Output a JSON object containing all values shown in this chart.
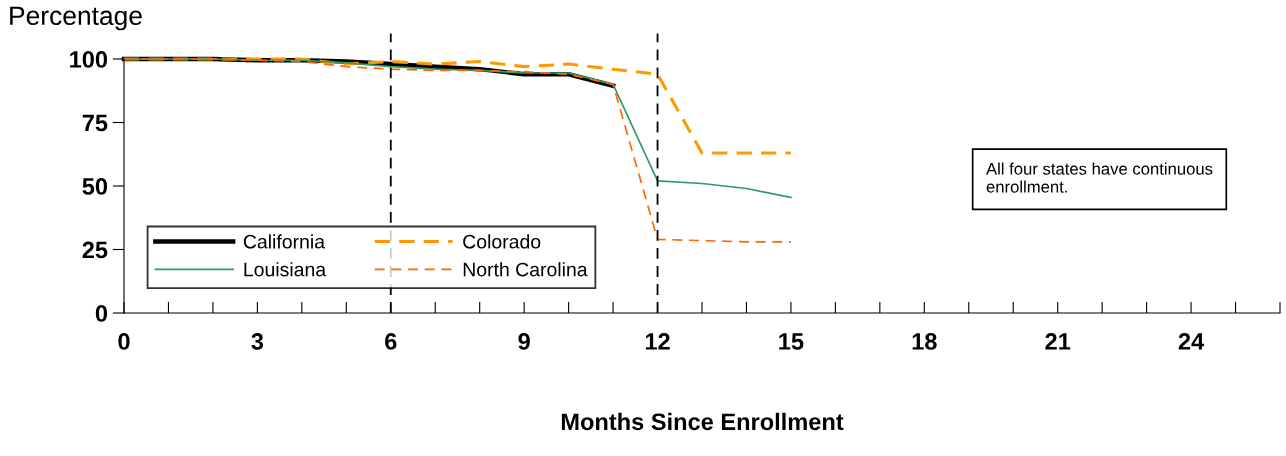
{
  "chart_data": {
    "type": "line",
    "ylabel": "Percentage",
    "xlabel": "Months Since Enrollment",
    "annotations": [
      "All four states have continuous enrollment."
    ],
    "x": [
      0,
      1,
      2,
      3,
      4,
      5,
      6,
      7,
      8,
      9,
      10,
      11,
      12,
      13,
      14,
      15
    ],
    "series": [
      {
        "name": "California",
        "color": "#000000",
        "line_style": "solid",
        "values": [
          100,
          100,
          100,
          99.5,
          99.5,
          99,
          98,
          97,
          96,
          94,
          94,
          89.5,
          null,
          null,
          null,
          null
        ]
      },
      {
        "name": "Colorado",
        "color": "#ff9900",
        "line_style": "dashed",
        "values": [
          100,
          100,
          100,
          100,
          100,
          98,
          99,
          98,
          99,
          97,
          98,
          96,
          94,
          63,
          63,
          63
        ]
      },
      {
        "name": "Louisiana",
        "color": "#339966",
        "line_style": "solid",
        "values": [
          100,
          100,
          100,
          99.5,
          99.5,
          98.5,
          97,
          96,
          95.5,
          94.5,
          94.5,
          90,
          52,
          51,
          49,
          45.5
        ]
      },
      {
        "name": "North Carolina",
        "color": "#ff6600",
        "line_style": "dashed",
        "values": [
          100,
          100,
          100,
          99.5,
          99,
          97,
          96,
          95.5,
          95.5,
          95,
          94,
          90,
          29,
          28.5,
          28,
          28
        ]
      }
    ],
    "xlim": [
      0,
      26
    ],
    "xticks": [
      0,
      {
        "value": 1,
        "label": null
      },
      {
        "value": 2,
        "label": null
      },
      3,
      {
        "value": 4,
        "label": null
      },
      {
        "value": 5,
        "label": null
      },
      6,
      {
        "value": 7,
        "label": null
      },
      {
        "value": 8,
        "label": null
      },
      9,
      {
        "value": 10,
        "label": null
      },
      {
        "value": 11,
        "label": null
      },
      12,
      {
        "value": 13,
        "label": null
      },
      {
        "value": 14,
        "label": null
      },
      15,
      {
        "value": 16,
        "label": null
      },
      {
        "value": 17,
        "label": null
      },
      18,
      {
        "value": 19,
        "label": null
      },
      {
        "value": 20,
        "label": null
      },
      21,
      {
        "value": 22,
        "label": null
      },
      {
        "value": 23,
        "label": null
      },
      24,
      {
        "value": 25,
        "label": null
      },
      {
        "value": 26,
        "label": null
      }
    ],
    "ylim": [
      0,
      100
    ],
    "yticks": [
      0,
      25,
      50,
      75,
      100
    ],
    "ref_lines": [
      {
        "axis": "x",
        "value": 6,
        "color": "#000000",
        "line_style": "dashed"
      },
      {
        "axis": "x",
        "value": 12,
        "color": "#000000",
        "line_style": "dashed"
      }
    ],
    "grid": false,
    "legend": "bottom left",
    "marker": "none"
  }
}
